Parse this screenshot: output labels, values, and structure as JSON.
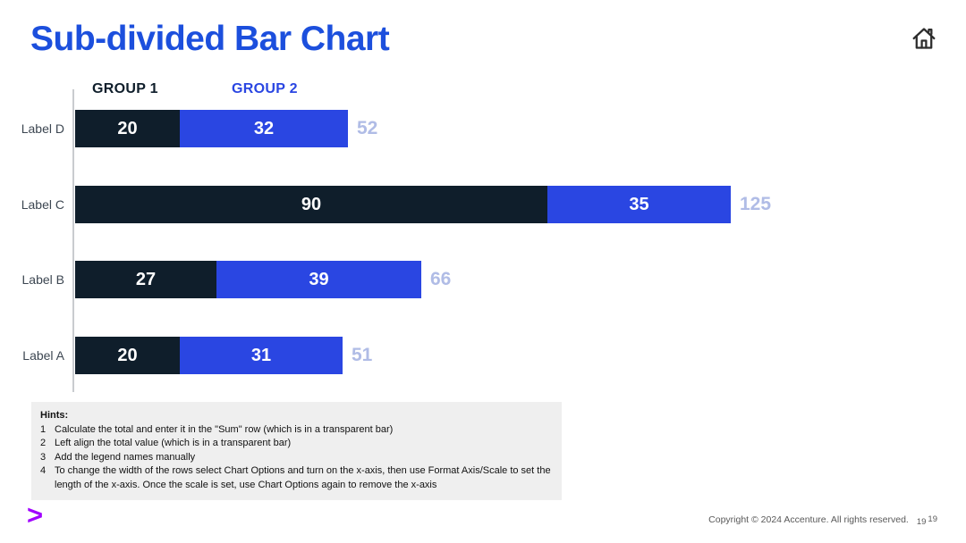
{
  "page": {
    "title": "Sub-divided Bar Chart",
    "title_color": "#1c4fdd"
  },
  "chart_data": {
    "type": "bar",
    "orientation": "horizontal",
    "title": "Sub-divided Bar Chart",
    "categories": [
      "Label D",
      "Label C",
      "Label B",
      "Label A"
    ],
    "series": [
      {
        "name": "GROUP 1",
        "color": "#0f1e2b",
        "values": [
          20,
          90,
          27,
          20
        ]
      },
      {
        "name": "GROUP 2",
        "color": "#2a46e2",
        "values": [
          32,
          35,
          39,
          31
        ]
      }
    ],
    "totals": [
      52,
      125,
      66,
      51
    ],
    "total_label_color": "#b0bce6",
    "legend_position": "top",
    "value_labels": "inside-center",
    "axis": "left-vertical-only",
    "xlim": [
      0,
      170
    ],
    "grid": false
  },
  "hints": {
    "title": "Hints:",
    "items": [
      {
        "num": "1",
        "text": "Calculate the total and enter it in the \"Sum\" row (which is in a transparent bar)"
      },
      {
        "num": "2",
        "text": "Left align the total value (which is in a transparent bar)"
      },
      {
        "num": "3",
        "text": "Add the legend names manually"
      },
      {
        "num": "4",
        "text": "To change the width of the rows select Chart Options and turn on the x-axis, then use Format Axis/Scale to set the length of the x-axis. Once the scale is set, use Chart Options again to remove the x-axis"
      }
    ]
  },
  "footer": {
    "copyright": "Copyright © 2024 Accenture. All rights reserved.",
    "page_number_small": "19",
    "page_number": "19",
    "logo_glyph": ">",
    "logo_color": "#a100ff"
  }
}
